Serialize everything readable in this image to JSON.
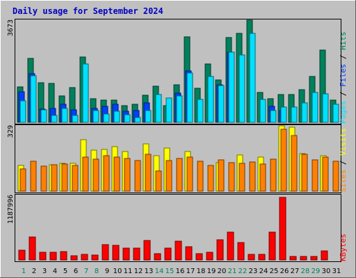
{
  "chart_data": [
    {
      "type": "bar",
      "title": "Daily usage for September 2024",
      "categories": [
        "1",
        "2",
        "3",
        "4",
        "5",
        "6",
        "7",
        "8",
        "9",
        "10",
        "11",
        "12",
        "13",
        "14",
        "15",
        "16",
        "17",
        "18",
        "19",
        "20",
        "21",
        "22",
        "23",
        "24",
        "25",
        "26",
        "27",
        "28",
        "29",
        "30",
        "31"
      ],
      "weekend_days": [
        "1",
        "7",
        "8",
        "14",
        "15",
        "21",
        "22",
        "28",
        "29"
      ],
      "max_label": "3673",
      "ylim": [
        0,
        3673
      ],
      "series": [
        {
          "name": "Hits",
          "color": "#00805c",
          "values": [
            1270,
            2290,
            1430,
            1390,
            960,
            1250,
            2340,
            850,
            800,
            810,
            590,
            640,
            970,
            1310,
            590,
            1340,
            3070,
            1230,
            2100,
            1520,
            3040,
            3200,
            3673,
            1080,
            840,
            1000,
            1010,
            1180,
            1650,
            2600,
            810
          ]
        },
        {
          "name": "Files",
          "color": "#0040ff",
          "values": [
            1100,
            1750,
            480,
            500,
            640,
            450,
            0,
            500,
            580,
            650,
            400,
            420,
            700,
            0,
            0,
            1050,
            1850,
            0,
            0,
            1340,
            2530,
            0,
            0,
            0,
            580,
            420,
            0,
            0,
            0,
            0,
            0
          ]
        },
        {
          "name": "Pages",
          "color": "#00e0ff",
          "values": [
            780,
            1680,
            440,
            260,
            490,
            250,
            2100,
            420,
            290,
            390,
            280,
            180,
            430,
            1010,
            880,
            960,
            1780,
            830,
            1650,
            1320,
            2530,
            2430,
            3190,
            820,
            420,
            560,
            550,
            700,
            1080,
            1030,
            660
          ]
        }
      ]
    },
    {
      "type": "bar",
      "categories": [
        "1",
        "2",
        "3",
        "4",
        "5",
        "6",
        "7",
        "8",
        "9",
        "10",
        "11",
        "12",
        "13",
        "14",
        "15",
        "16",
        "17",
        "18",
        "19",
        "20",
        "21",
        "22",
        "23",
        "24",
        "25",
        "26",
        "27",
        "28",
        "29",
        "30",
        "31"
      ],
      "max_label": "329",
      "ylim": [
        0,
        329
      ],
      "series": [
        {
          "name": "Visits",
          "color": "#ffff00",
          "values": [
            130,
            0,
            0,
            132,
            140,
            139,
            258,
            205,
            210,
            223,
            200,
            0,
            238,
            180,
            218,
            0,
            200,
            0,
            0,
            143,
            0,
            183,
            0,
            172,
            0,
            329,
            323,
            190,
            0,
            178,
            0
          ]
        },
        {
          "name": "Sites",
          "color": "#ff8000",
          "values": [
            112,
            152,
            125,
            133,
            135,
            130,
            170,
            160,
            180,
            172,
            165,
            155,
            185,
            100,
            155,
            163,
            172,
            150,
            128,
            157,
            145,
            140,
            148,
            138,
            160,
            310,
            280,
            186,
            158,
            173,
            150
          ]
        }
      ]
    },
    {
      "type": "bar",
      "categories": [
        "1",
        "2",
        "3",
        "4",
        "5",
        "6",
        "7",
        "8",
        "9",
        "10",
        "11",
        "12",
        "13",
        "14",
        "15",
        "16",
        "17",
        "18",
        "19",
        "20",
        "21",
        "22",
        "23",
        "24",
        "25",
        "26",
        "27",
        "28",
        "29",
        "30",
        "31"
      ],
      "max_label": "1187996",
      "ylim": [
        0,
        1187996
      ],
      "series": [
        {
          "name": "KBytes",
          "color": "#ff0000",
          "values": [
            180000,
            440000,
            140000,
            140000,
            160000,
            80000,
            100000,
            90000,
            290000,
            280000,
            220000,
            220000,
            370000,
            120000,
            220000,
            350000,
            250000,
            120000,
            150000,
            380000,
            530000,
            330000,
            100000,
            100000,
            530000,
            1187996,
            60000,
            60000,
            70000,
            170000,
            0
          ]
        }
      ]
    }
  ]
}
